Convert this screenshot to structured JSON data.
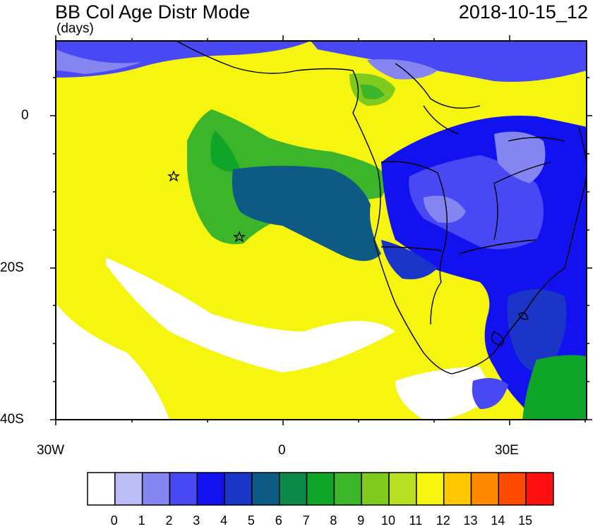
{
  "title": "BB Col Age Distr Mode",
  "subtitle": "(days)",
  "timestamp": "2018-10-15_12",
  "axes": {
    "lat_labels": [
      "0",
      "20S",
      "40S"
    ],
    "lon_labels": [
      "30W",
      "0",
      "30E"
    ]
  },
  "colorbar": {
    "labels": [
      "0",
      "1",
      "2",
      "3",
      "4",
      "5",
      "6",
      "7",
      "8",
      "9",
      "10",
      "11",
      "12",
      "13",
      "14",
      "15"
    ],
    "colors": [
      "#ffffff",
      "#bdbdf5",
      "#8585f2",
      "#4848f5",
      "#1212f0",
      "#1a35c8",
      "#0d5a85",
      "#0d8a4a",
      "#0fa528",
      "#3cb52a",
      "#7ecb1e",
      "#b8e022",
      "#f5f50f",
      "#ffc800",
      "#ff8a00",
      "#ff4a00",
      "#ff0f0f"
    ]
  },
  "markers": [
    "star",
    "star"
  ]
}
